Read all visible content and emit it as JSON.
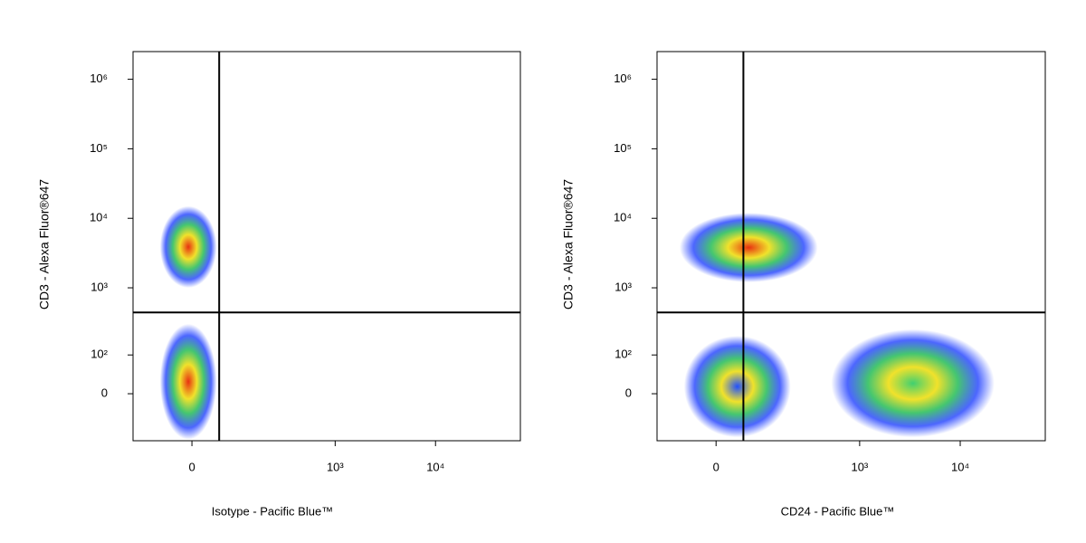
{
  "chart_data": [
    {
      "type": "density",
      "x_label": "Isotype - Pacific Blue™",
      "y_label": "CD3 - Alexa Fluor®647",
      "xlim": [
        -135,
        70000
      ],
      "ylim": [
        -136,
        2500000
      ],
      "xticks": [
        0,
        {
          "value": 1000,
          "label": "10³"
        },
        {
          "value": 10000,
          "label": "10⁴"
        }
      ],
      "yticks": [
        0,
        {
          "value": 100,
          "label": "10²"
        },
        {
          "value": 1000,
          "label": "10³"
        },
        {
          "value": 10000,
          "label": "10⁴"
        },
        {
          "value": 100000,
          "label": "10⁵"
        },
        {
          "value": 1000000,
          "label": "10⁶"
        }
      ],
      "gates": {
        "x": 50,
        "y": 440
      },
      "populations": [
        {
          "x_range": [
            -60,
            45
          ],
          "y_range": [
            1000,
            15000
          ],
          "color": "#e83010"
        },
        {
          "x_range": [
            -60,
            45
          ],
          "y_range": [
            -130,
            300
          ],
          "color": "#e83010"
        }
      ]
    },
    {
      "type": "density",
      "x_label": "CD24 - Pacific Blue™",
      "y_label": "CD3 - Alexa Fluor®647",
      "xlim": [
        -135,
        70000
      ],
      "ylim": [
        -136,
        2500000
      ],
      "xticks": [
        0,
        {
          "value": 1000,
          "label": "10³"
        },
        {
          "value": 10000,
          "label": "10⁴"
        }
      ],
      "yticks": [
        0,
        {
          "value": 100,
          "label": "10²"
        },
        {
          "value": 1000,
          "label": "10³"
        },
        {
          "value": 10000,
          "label": "10⁴"
        },
        {
          "value": 100000,
          "label": "10⁵"
        },
        {
          "value": 1000000,
          "label": "10⁶"
        }
      ],
      "gates": {
        "x": 50,
        "y": 440
      },
      "populations": [
        {
          "x_range": [
            -70,
            380
          ],
          "y_range": [
            1200,
            12000
          ],
          "color": "#e83010"
        },
        {
          "x_range": [
            520,
            21900
          ],
          "y_range": [
            -120,
            250
          ],
          "color": "#40d070"
        },
        {
          "x_range": [
            -60,
            200
          ],
          "y_range": [
            -120,
            200
          ],
          "color": "#2050ff"
        }
      ]
    }
  ]
}
